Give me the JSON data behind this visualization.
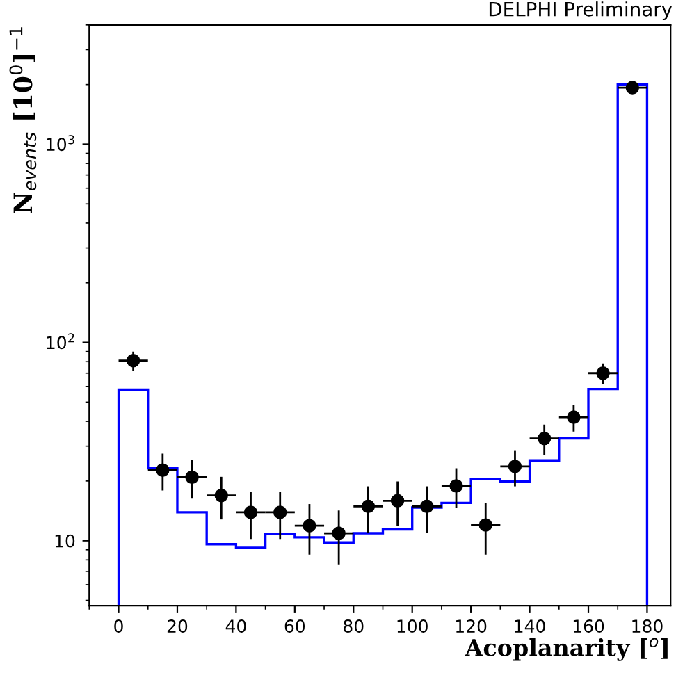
{
  "chart_data": {
    "type": "histogram",
    "xlabel": "Acoplanarity [$^{o}$]",
    "ylabel": "N$_{events}$ [10$^{0}$]$^{−1}$",
    "annotations": [
      "DELPHI Preliminary"
    ],
    "bins": [
      0,
      10,
      20,
      30,
      40,
      50,
      60,
      70,
      80,
      90,
      100,
      110,
      120,
      130,
      140,
      150,
      160,
      170,
      180
    ],
    "series": [
      {
        "color": "#0000ff",
        "values": [
          57.8,
          23.2,
          13.9,
          9.6,
          9.2,
          10.8,
          10.4,
          9.8,
          10.9,
          11.4,
          14.7,
          15.5,
          20.4,
          19.9,
          25.4,
          32.8,
          58.2,
          2000
        ]
      },
      {
        "type": "scatter",
        "color": "#000000",
        "x": [
          5,
          15,
          25,
          35,
          45,
          55,
          65,
          75,
          85,
          95,
          105,
          115,
          125,
          135,
          145,
          155,
          165,
          175
        ],
        "values": [
          81,
          22.7,
          20.9,
          16.9,
          13.9,
          13.9,
          11.9,
          10.9,
          14.9,
          15.9,
          14.9,
          18.9,
          12.0,
          23.7,
          32.8,
          42,
          70,
          1930
        ],
        "errors": [
          9,
          4.8,
          4.6,
          4.1,
          3.7,
          3.7,
          3.4,
          3.3,
          3.9,
          4.0,
          3.9,
          4.3,
          3.5,
          4.9,
          5.7,
          6.5,
          8.4,
          44
        ],
        "xerrors": [
          5,
          5,
          5,
          5,
          5,
          5,
          5,
          5,
          5,
          5,
          5,
          5,
          5,
          5,
          5,
          5,
          5,
          5
        ]
      }
    ],
    "log": "y",
    "xlim": [
      -10,
      188
    ],
    "ylim": [
      4.7,
      4000
    ],
    "xticks": [
      0,
      20,
      40,
      60,
      80,
      100,
      120,
      140,
      160,
      180
    ],
    "yticks": [
      10,
      {
        "value": 100,
        "label": "10$^{2}$"
      },
      {
        "value": 1000,
        "label": "10$^{3}$"
      }
    ],
    "marker": "circle",
    "grid": false,
    "legend": false
  }
}
